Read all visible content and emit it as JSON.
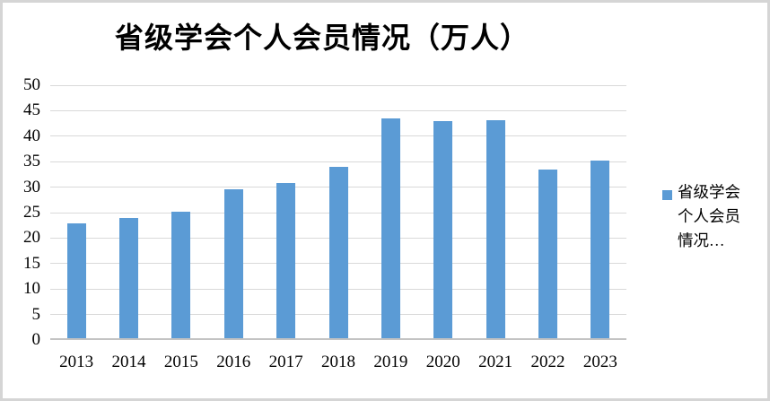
{
  "chart": {
    "legend": {
      "lines": [
        "省级学会",
        "个人会员",
        "情况…"
      ],
      "full_label": "省级学会个人会员情况…",
      "swatch_color": "#5b9bd5"
    },
    "colors": {
      "bar": "#5b9bd5",
      "gridline": "#d9d9d9",
      "axis_line": "#c3c3c3",
      "outer_border": "#d5d5d5",
      "text": "#000000"
    }
  },
  "chart_data": {
    "type": "bar",
    "title": "省级学会个人会员情况（万人）",
    "categories": [
      "2013",
      "2014",
      "2015",
      "2016",
      "2017",
      "2018",
      "2019",
      "2020",
      "2021",
      "2022",
      "2023"
    ],
    "series": [
      {
        "name": "省级学会个人会员情况…",
        "values": [
          22.9,
          24.0,
          25.2,
          29.6,
          30.9,
          33.9,
          43.5,
          43.0,
          43.2,
          33.5,
          35.3
        ]
      }
    ],
    "xlabel": "",
    "ylabel": "",
    "ylim": [
      0,
      50
    ],
    "ytick_step": 5,
    "yticks": [
      0,
      5,
      10,
      15,
      20,
      25,
      30,
      35,
      40,
      45,
      50
    ],
    "grid": "horizontal",
    "legend_position": "right",
    "bar_color": "#5b9bd5"
  }
}
